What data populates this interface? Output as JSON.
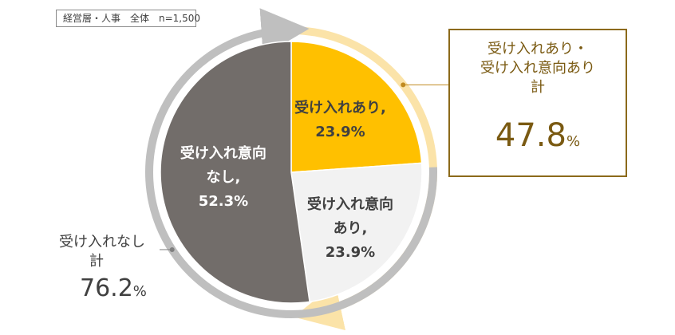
{
  "sample_note": "経営層・人事　全体　n=1,500",
  "chart_data": {
    "type": "pie",
    "slices": [
      {
        "label_lines": [
          "受け入れあり,"
        ],
        "value": 23.9,
        "value_label": "23.9%",
        "color": "#FFC000",
        "text_color": "#404040"
      },
      {
        "label_lines": [
          "受け入れ意向",
          "あり,"
        ],
        "value": 23.9,
        "value_label": "23.9%",
        "color": "#F2F2F2",
        "text_color": "#404040"
      },
      {
        "label_lines": [
          "受け入れ意向",
          "なし,"
        ],
        "value": 52.3,
        "value_label": "52.3%",
        "color": "#726D6A",
        "text_color": "#FFFFFF"
      }
    ],
    "groups": [
      {
        "label_lines": [
          "受け入れあり・",
          "受け入れ意向あり",
          "計"
        ],
        "value": 47.8,
        "value_text": "47.8",
        "unit": "%",
        "arc_color": "#FBE3A8",
        "leader_color": "#C08A20"
      },
      {
        "label_lines": [
          "受け入れなし",
          "計"
        ],
        "value": 76.2,
        "value_text": "76.2",
        "unit": "%",
        "arc_color": "#BFBFBF",
        "leader_color": "#7F7F7F"
      }
    ]
  }
}
